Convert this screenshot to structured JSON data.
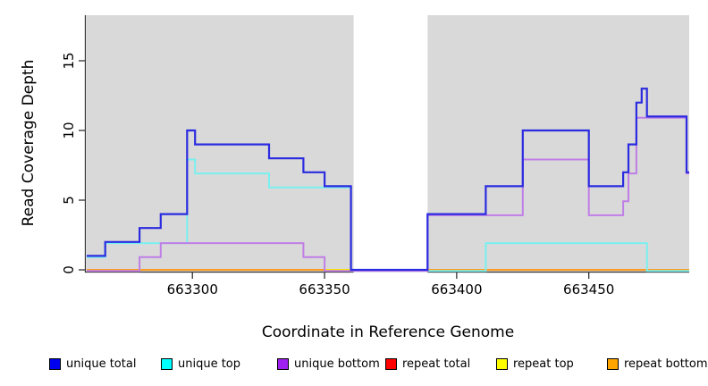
{
  "chart_data": {
    "type": "line",
    "subtype": "step-coverage",
    "xlabel": "Coordinate in Reference Genome",
    "ylabel": "Read Coverage Depth",
    "xlim": [
      663260,
      663488
    ],
    "ylim": [
      0,
      18.3
    ],
    "x_ticks": [
      663300,
      663350,
      663400,
      663450
    ],
    "y_ticks": [
      0,
      5,
      10,
      15
    ],
    "grid": false,
    "plot_bg_color": "#d9d9d9",
    "axis_color": "#333333",
    "gap_region": {
      "start": 663361,
      "end": 663389,
      "color": "#ffffff"
    },
    "legend_position": "bottom",
    "series": [
      {
        "name": "repeat total",
        "line_color": "#e04560",
        "dy": 0,
        "segments": [
          {
            "steps": [
              [
                663260,
                0
              ]
            ],
            "end": 663360
          },
          {
            "steps": [
              [
                663389,
                0
              ]
            ],
            "end": 663488
          }
        ]
      },
      {
        "name": "repeat top",
        "line_color": "#f5e400",
        "dy": 0,
        "segments": [
          {
            "steps": [
              [
                663260,
                0
              ]
            ],
            "end": 663360
          },
          {
            "steps": [
              [
                663389,
                0
              ]
            ],
            "end": 663488
          }
        ]
      },
      {
        "name": "repeat bottom",
        "line_color": "#ff9c20",
        "dy": 0,
        "segments": [
          {
            "steps": [
              [
                663260,
                0
              ]
            ],
            "end": 663350
          },
          {
            "steps": [
              [
                663389,
                0
              ]
            ],
            "end": 663488
          }
        ]
      },
      {
        "name": "unique top",
        "line_color": "#78f0f0",
        "dy": 1.3,
        "segments": [
          {
            "steps": [
              [
                663260,
                1
              ],
              [
                663267,
                2
              ],
              [
                663298,
                8
              ],
              [
                663301,
                7
              ],
              [
                663329,
                6
              ],
              [
                663360,
                0
              ],
              [
                663411,
                2
              ],
              [
                663472,
                0
              ]
            ],
            "end": 663488
          }
        ]
      },
      {
        "name": "unique bottom",
        "line_color": "#c07ee6",
        "dy": 1.3,
        "segments": [
          {
            "steps": [
              [
                663260,
                0
              ],
              [
                663280,
                1
              ],
              [
                663288,
                2
              ],
              [
                663342,
                1
              ],
              [
                663350,
                0
              ],
              [
                663389,
                4
              ],
              [
                663425,
                8
              ],
              [
                663450,
                4
              ],
              [
                663463,
                5
              ],
              [
                663465,
                7
              ],
              [
                663468,
                11
              ],
              [
                663487,
                7
              ]
            ],
            "end": 663488
          }
        ]
      },
      {
        "name": "unique total",
        "line_color": "#2b2be0",
        "dy": 0,
        "segments": [
          {
            "steps": [
              [
                663260,
                1
              ],
              [
                663267,
                2
              ],
              [
                663280,
                3
              ],
              [
                663288,
                4
              ],
              [
                663298,
                10
              ],
              [
                663301,
                9
              ],
              [
                663329,
                8
              ],
              [
                663342,
                7
              ],
              [
                663350,
                6
              ],
              [
                663360,
                0
              ],
              [
                663389,
                4
              ],
              [
                663411,
                6
              ],
              [
                663425,
                10
              ],
              [
                663450,
                6
              ],
              [
                663463,
                7
              ],
              [
                663465,
                9
              ],
              [
                663468,
                12
              ],
              [
                663470,
                13
              ],
              [
                663472,
                11
              ],
              [
                663487,
                7
              ]
            ],
            "end": 663488
          }
        ]
      }
    ]
  },
  "legend": {
    "items": [
      {
        "label": "unique total",
        "color": "#0000f0"
      },
      {
        "label": "unique top",
        "color": "#00ffff"
      },
      {
        "label": "unique bottom",
        "color": "#a020f0"
      },
      {
        "label": "repeat total",
        "color": "#ff0000"
      },
      {
        "label": "repeat top",
        "color": "#ffff00"
      },
      {
        "label": "repeat bottom",
        "color": "#ffa500"
      }
    ]
  }
}
